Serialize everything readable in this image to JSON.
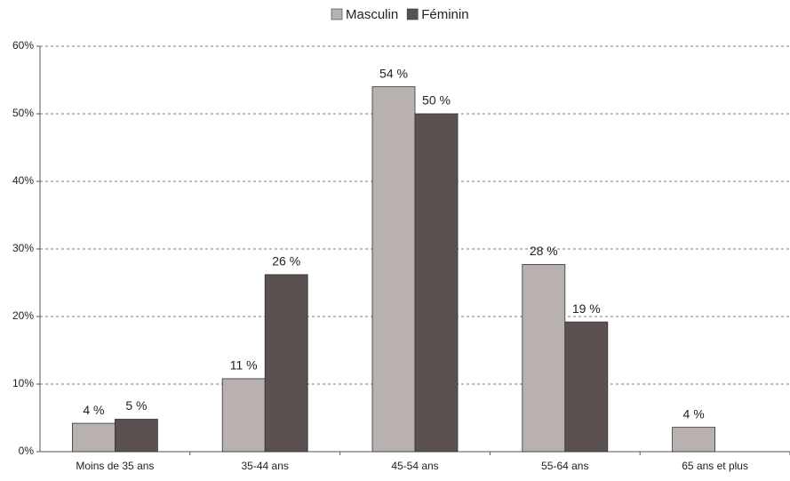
{
  "chart_data": {
    "type": "bar",
    "categories": [
      "Moins de 35 ans",
      "35-44 ans",
      "45-54 ans",
      "55-64 ans",
      "65 ans et plus"
    ],
    "series": [
      {
        "name": "Masculin",
        "color": "#b9b1af",
        "values": [
          4.2,
          10.8,
          54,
          27.7,
          3.6
        ],
        "value_labels": [
          "4 %",
          "11 %",
          "54 %",
          "28 %",
          "4 %"
        ]
      },
      {
        "name": "Féminin",
        "color": "#5b5150",
        "values": [
          4.8,
          26.2,
          50,
          19.2,
          null
        ],
        "value_labels": [
          "5 %",
          "26 %",
          "50 %",
          "19 %",
          null
        ]
      }
    ],
    "ylim": [
      0,
      60
    ],
    "yticks": [
      {
        "value": 0,
        "label": "0%"
      },
      {
        "value": 10,
        "label": "10%"
      },
      {
        "value": 20,
        "label": "20%"
      },
      {
        "value": 30,
        "label": "30%"
      },
      {
        "value": 40,
        "label": "40%"
      },
      {
        "value": 50,
        "label": "50%"
      },
      {
        "value": 60,
        "label": "60%"
      }
    ],
    "grid": true,
    "legend": "top"
  }
}
